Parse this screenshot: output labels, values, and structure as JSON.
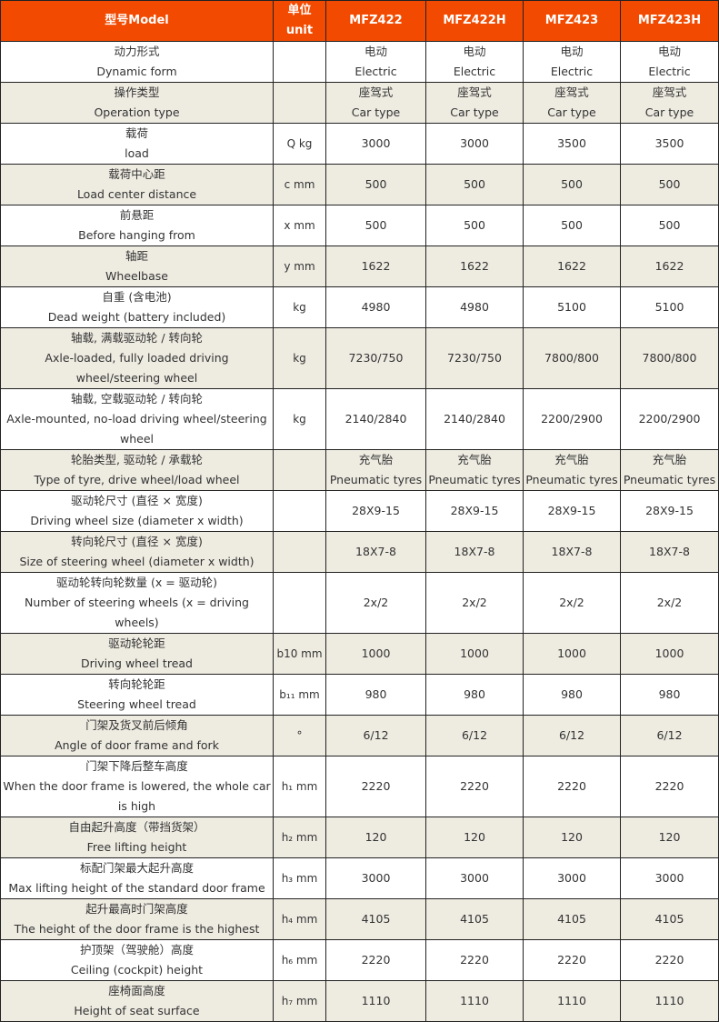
{
  "header": {
    "model": "型号Model",
    "unit": "单位unit",
    "models": [
      "MFZ422",
      "MFZ422H",
      "MFZ423",
      "MFZ423H"
    ]
  },
  "colors": {
    "header_bg": "#f24a00",
    "alt_row_bg": "#eeebe1"
  },
  "rows": [
    {
      "zh": "动力形式",
      "en": "Dynamic form",
      "unit": "",
      "values": [
        "电动\nElectric",
        "电动\nElectric",
        "电动\nElectric",
        "电动\nElectric"
      ]
    },
    {
      "zh": "操作类型",
      "en": "Operation type",
      "unit": "",
      "values": [
        "座驾式\nCar type",
        "座驾式\nCar type",
        "座驾式\nCar type",
        "座驾式\nCar type"
      ]
    },
    {
      "zh": "载荷",
      "en": "load",
      "unit": "Q  kg",
      "values": [
        "3000",
        "3000",
        "3500",
        "3500"
      ]
    },
    {
      "zh": "载荷中心距",
      "en": "Load center distance",
      "unit": "c  mm",
      "values": [
        "500",
        "500",
        "500",
        "500"
      ]
    },
    {
      "zh": "前悬距",
      "en": "Before hanging from",
      "unit": "x  mm",
      "values": [
        "500",
        "500",
        "500",
        "500"
      ]
    },
    {
      "zh": "轴距",
      "en": "Wheelbase",
      "unit": "y  mm",
      "values": [
        "1622",
        "1622",
        "1622",
        "1622"
      ]
    },
    {
      "zh": "自重 (含电池)",
      "en": "Dead weight (battery included)",
      "unit": "kg",
      "values": [
        "4980",
        "4980",
        "5100",
        "5100"
      ]
    },
    {
      "zh": "轴载, 满载驱动轮 / 转向轮",
      "en": "Axle-loaded, fully loaded driving wheel/steering wheel",
      "unit": "kg",
      "values": [
        "7230/750",
        "7230/750",
        "7800/800",
        "7800/800"
      ]
    },
    {
      "zh": "轴载, 空载驱动轮 / 转向轮",
      "en": "Axle-mounted, no-load driving wheel/steering wheel",
      "unit": "kg",
      "values": [
        "2140/2840",
        "2140/2840",
        "2200/2900",
        "2200/2900"
      ]
    },
    {
      "zh": "轮胎类型, 驱动轮 / 承载轮",
      "en": "Type of tyre, drive wheel/load wheel",
      "unit": "",
      "values": [
        "充气胎\nPneumatic tyres",
        "充气胎\nPneumatic tyres",
        "充气胎\nPneumatic tyres",
        "充气胎\nPneumatic tyres"
      ]
    },
    {
      "zh": "驱动轮尺寸 (直径 × 宽度)",
      "en": "Driving wheel size (diameter x width)",
      "unit": "",
      "values": [
        "28X9-15",
        "28X9-15",
        "28X9-15",
        "28X9-15"
      ]
    },
    {
      "zh": "转向轮尺寸 (直径 × 宽度)",
      "en": "Size of steering wheel (diameter x width)",
      "unit": "",
      "values": [
        "18X7-8",
        "18X7-8",
        "18X7-8",
        "18X7-8"
      ]
    },
    {
      "zh": "驱动轮转向轮数量 (x = 驱动轮)",
      "en": "Number of steering wheels (x = driving wheels)",
      "unit": "",
      "values": [
        "2x/2",
        "2x/2",
        "2x/2",
        "2x/2"
      ]
    },
    {
      "zh": "驱动轮轮距",
      "en": "Driving wheel tread",
      "unit": "b10 mm",
      "values": [
        "1000",
        "1000",
        "1000",
        "1000"
      ]
    },
    {
      "zh": "转向轮轮距",
      "en": "Steering wheel tread",
      "unit": "b₁₁  mm",
      "values": [
        "980",
        "980",
        "980",
        "980"
      ]
    },
    {
      "zh": "门架及货叉前后倾角",
      "en": "Angle of door frame and fork",
      "unit": "°",
      "values": [
        "6/12",
        "6/12",
        "6/12",
        "6/12"
      ]
    },
    {
      "zh": "门架下降后整车高度",
      "en": "When the door frame is lowered, the whole car is high",
      "unit": "h₁  mm",
      "values": [
        "2220",
        "2220",
        "2220",
        "2220"
      ]
    },
    {
      "zh": "自由起升高度（带挡货架）",
      "en": "Free lifting height",
      "unit": "h₂  mm",
      "values": [
        "120",
        "120",
        "120",
        "120"
      ]
    },
    {
      "zh": "标配门架最大起升高度",
      "en": "Max lifting height of the standard door frame",
      "unit": "h₃  mm",
      "values": [
        "3000",
        "3000",
        "3000",
        "3000"
      ]
    },
    {
      "zh": "起升最高时门架高度",
      "en": "The height of the door frame is the highest",
      "unit": "h₄  mm",
      "values": [
        "4105",
        "4105",
        "4105",
        "4105"
      ]
    },
    {
      "zh": "护顶架（驾驶舱）高度",
      "en": "Ceiling (cockpit) height",
      "unit": "h₆  mm",
      "values": [
        "2220",
        "2220",
        "2220",
        "2220"
      ]
    },
    {
      "zh": "座椅面高度",
      "en": "Height of seat surface",
      "unit": "h₇  mm",
      "values": [
        "1110",
        "1110",
        "1110",
        "1110"
      ]
    }
  ]
}
